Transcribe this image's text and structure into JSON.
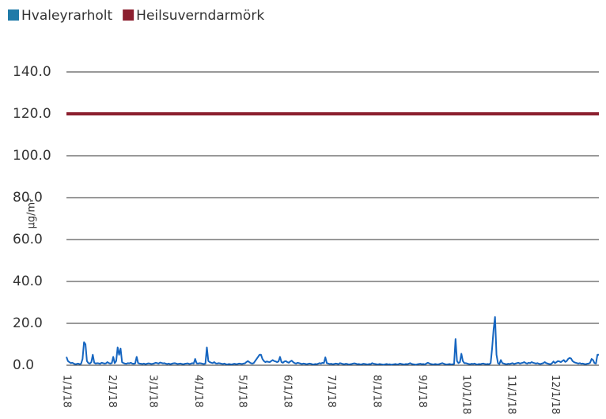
{
  "chart_data": {
    "type": "line",
    "y_label": "µg/m³",
    "categories": [
      "1/1/18",
      null,
      null,
      null,
      null,
      null,
      null,
      null,
      null,
      null,
      null,
      null,
      null,
      null,
      null,
      null,
      null,
      null,
      null,
      null,
      null,
      null,
      null,
      null,
      null,
      null,
      null,
      null,
      null,
      null,
      null,
      "2/1/18",
      null,
      null,
      null,
      null,
      null,
      null,
      null,
      null,
      null,
      null,
      null,
      null,
      null,
      null,
      null,
      null,
      null,
      null,
      null,
      null,
      null,
      null,
      null,
      null,
      null,
      null,
      null,
      "3/1/18",
      null,
      null,
      null,
      null,
      null,
      null,
      null,
      null,
      null,
      null,
      null,
      null,
      null,
      null,
      null,
      null,
      null,
      null,
      null,
      null,
      null,
      null,
      null,
      null,
      null,
      null,
      null,
      null,
      null,
      null,
      "4/1/18",
      null,
      null,
      null,
      null,
      null,
      null,
      null,
      null,
      null,
      null,
      null,
      null,
      null,
      null,
      null,
      null,
      null,
      null,
      null,
      null,
      null,
      null,
      null,
      null,
      null,
      null,
      null,
      null,
      null,
      "5/1/18",
      null,
      null,
      null,
      null,
      null,
      null,
      null,
      null,
      null,
      null,
      null,
      null,
      null,
      null,
      null,
      null,
      null,
      null,
      null,
      null,
      null,
      null,
      null,
      null,
      null,
      null,
      null,
      null,
      null,
      null,
      "6/1/18",
      null,
      null,
      null,
      null,
      null,
      null,
      null,
      null,
      null,
      null,
      null,
      null,
      null,
      null,
      null,
      null,
      null,
      null,
      null,
      null,
      null,
      null,
      null,
      null,
      null,
      null,
      null,
      null,
      null,
      "7/1/18",
      null,
      null,
      null,
      null,
      null,
      null,
      null,
      null,
      null,
      null,
      null,
      null,
      null,
      null,
      null,
      null,
      null,
      null,
      null,
      null,
      null,
      null,
      null,
      null,
      null,
      null,
      null,
      null,
      null,
      null,
      "8/1/18",
      null,
      null,
      null,
      null,
      null,
      null,
      null,
      null,
      null,
      null,
      null,
      null,
      null,
      null,
      null,
      null,
      null,
      null,
      null,
      null,
      null,
      null,
      null,
      null,
      null,
      null,
      null,
      null,
      null,
      null,
      "9/1/18",
      null,
      null,
      null,
      null,
      null,
      null,
      null,
      null,
      null,
      null,
      null,
      null,
      null,
      null,
      null,
      null,
      null,
      null,
      null,
      null,
      null,
      null,
      null,
      null,
      null,
      null,
      null,
      null,
      null,
      "10/1/18",
      null,
      null,
      null,
      null,
      null,
      null,
      null,
      null,
      null,
      null,
      null,
      null,
      null,
      null,
      null,
      null,
      null,
      null,
      null,
      null,
      null,
      null,
      null,
      null,
      null,
      null,
      null,
      null,
      null,
      null,
      "11/1/18",
      null,
      null,
      null,
      null,
      null,
      null,
      null,
      null,
      null,
      null,
      null,
      null,
      null,
      null,
      null,
      null,
      null,
      null,
      null,
      null,
      null,
      null,
      null,
      null,
      null,
      null,
      null,
      null,
      null,
      "12/1/18",
      null,
      null,
      null,
      null,
      null,
      null,
      null,
      null,
      null,
      null,
      null,
      null,
      null,
      null,
      null,
      null,
      null,
      null,
      null,
      null,
      null,
      null,
      null,
      null,
      null,
      null,
      null,
      null,
      null,
      null
    ],
    "series": [
      {
        "name": "Hvaleyrarholt",
        "color": "#1565c0",
        "legend_color": "#1f7aa8",
        "values": [
          4,
          2,
          1.5,
          1,
          1.2,
          0.8,
          0.5,
          0.6,
          0.8,
          0.5,
          0.7,
          3,
          11,
          10,
          2,
          1,
          0.8,
          1.5,
          5,
          1.2,
          0.8,
          1,
          0.9,
          0.7,
          1.2,
          1,
          0.8,
          0.9,
          1.5,
          1,
          0.8,
          1,
          4,
          1,
          2,
          8.5,
          5,
          8,
          1.5,
          1,
          0.8,
          0.7,
          1,
          0.9,
          1.2,
          0.8,
          0.7,
          0.9,
          4,
          1,
          0.8,
          0.7,
          0.6,
          0.8,
          0.5,
          0.7,
          0.9,
          0.8,
          0.6,
          0.7,
          0.9,
          1.2,
          1,
          0.8,
          1.3,
          1.1,
          0.9,
          1,
          0.7,
          0.6,
          0.8,
          0.5,
          0.7,
          0.9,
          1,
          0.8,
          0.6,
          0.7,
          0.8,
          0.6,
          0.5,
          0.7,
          0.8,
          0.9,
          0.6,
          0.7,
          1,
          0.8,
          3,
          0.9,
          0.8,
          1,
          0.9,
          0.7,
          0.6,
          0.8,
          8.5,
          2,
          1.5,
          1.2,
          1,
          1.5,
          0.9,
          0.8,
          1,
          0.9,
          0.7,
          0.6,
          0.8,
          0.5,
          0.4,
          0.6,
          0.5,
          0.4,
          0.6,
          0.7,
          0.5,
          0.6,
          0.8,
          0.7,
          0.6,
          0.8,
          0.9,
          1.5,
          2,
          1.5,
          1,
          0.8,
          1,
          2,
          3,
          4,
          5,
          5,
          3,
          2,
          1.5,
          1.8,
          1.6,
          1.5,
          2,
          2.5,
          2,
          1.8,
          1.5,
          1.8,
          4,
          1.5,
          1.2,
          1.8,
          2,
          1.5,
          1.2,
          1.8,
          2.2,
          1.5,
          1,
          0.8,
          1.2,
          1,
          0.8,
          0.6,
          0.8,
          0.7,
          0.5,
          0.6,
          0.8,
          0.7,
          0.5,
          0.4,
          0.6,
          0.5,
          0.7,
          1,
          0.8,
          1.2,
          1,
          3.8,
          1,
          0.8,
          0.6,
          0.7,
          0.5,
          0.6,
          0.8,
          0.7,
          0.5,
          1,
          0.8,
          0.6,
          0.5,
          0.7,
          0.6,
          0.4,
          0.5,
          0.6,
          0.8,
          0.9,
          0.7,
          0.5,
          0.6,
          0.4,
          0.5,
          0.7,
          0.6,
          0.5,
          0.4,
          0.6,
          0.5,
          1,
          0.7,
          0.6,
          0.5,
          0.4,
          0.6,
          0.5,
          0.4,
          0.3,
          0.5,
          0.6,
          0.4,
          0.5,
          0.3,
          0.4,
          0.5,
          0.6,
          0.4,
          0.5,
          0.8,
          0.6,
          0.5,
          0.4,
          0.6,
          0.5,
          0.7,
          1,
          0.6,
          0.5,
          0.4,
          0.3,
          0.5,
          0.6,
          0.7,
          0.5,
          0.6,
          0.4,
          0.8,
          1.2,
          0.9,
          0.6,
          0.5,
          0.4,
          0.6,
          0.5,
          0.4,
          0.6,
          0.8,
          1,
          0.7,
          0.5,
          0.4,
          0.5,
          0.6,
          0.4,
          0.5,
          0.6,
          12.5,
          2,
          1,
          1.5,
          5.5,
          2,
          1,
          1,
          0.8,
          0.6,
          0.5,
          0.7,
          0.6,
          0.8,
          0.5,
          0.4,
          0.6,
          0.5,
          0.7,
          0.8,
          0.6,
          0.5,
          0.6,
          0.5,
          1,
          8,
          17,
          23,
          5,
          1,
          0.6,
          2.5,
          1,
          0.8,
          0.6,
          0.5,
          0.7,
          0.6,
          0.8,
          1,
          0.6,
          0.8,
          1,
          1.2,
          0.8,
          1,
          1.2,
          1.5,
          1,
          0.8,
          1.2,
          1,
          1.5,
          1.2,
          1,
          0.8,
          1,
          0.7,
          0.6,
          0.8,
          1,
          1.5,
          1,
          0.8,
          0.6,
          0.5,
          1,
          1.8,
          1,
          1.5,
          2,
          1.8,
          1.5,
          2,
          2.5,
          1.6,
          2,
          3,
          3.5,
          3.2,
          2,
          1.5,
          1.2,
          1,
          0.8,
          1,
          0.7,
          0.8,
          0.6,
          0.5,
          0.7,
          0.8,
          1.2,
          3,
          2.5,
          1,
          0.8,
          5,
          5
        ]
      },
      {
        "name": "Heilsuverndarmörk",
        "color": "#8b1e2e",
        "legend_color": "#8b1e2e",
        "values": [
          120,
          120,
          120,
          120,
          120,
          120,
          120,
          120,
          120,
          120,
          120,
          120,
          120,
          120,
          120,
          120,
          120,
          120,
          120,
          120,
          120,
          120,
          120,
          120,
          120,
          120,
          120,
          120,
          120,
          120,
          120,
          120,
          120,
          120,
          120,
          120,
          120,
          120,
          120,
          120,
          120,
          120,
          120,
          120,
          120,
          120,
          120,
          120,
          120,
          120,
          120,
          120,
          120,
          120,
          120,
          120,
          120,
          120,
          120,
          120,
          120,
          120,
          120,
          120,
          120,
          120,
          120,
          120,
          120,
          120,
          120,
          120,
          120,
          120,
          120,
          120,
          120,
          120,
          120,
          120,
          120,
          120,
          120,
          120,
          120,
          120,
          120,
          120,
          120,
          120,
          120,
          120,
          120,
          120,
          120,
          120,
          120,
          120,
          120,
          120,
          120,
          120,
          120,
          120,
          120,
          120,
          120,
          120,
          120,
          120,
          120,
          120,
          120,
          120,
          120,
          120,
          120,
          120,
          120,
          120,
          120,
          120,
          120,
          120,
          120,
          120,
          120,
          120,
          120,
          120,
          120,
          120,
          120,
          120,
          120,
          120,
          120,
          120,
          120,
          120,
          120,
          120,
          120,
          120,
          120,
          120,
          120,
          120,
          120,
          120,
          120,
          120,
          120,
          120,
          120,
          120,
          120,
          120,
          120,
          120,
          120,
          120,
          120,
          120,
          120,
          120,
          120,
          120,
          120,
          120,
          120,
          120,
          120,
          120,
          120,
          120,
          120,
          120,
          120,
          120,
          120,
          120,
          120,
          120,
          120,
          120,
          120,
          120,
          120,
          120,
          120,
          120,
          120,
          120,
          120,
          120,
          120,
          120,
          120,
          120,
          120,
          120,
          120,
          120,
          120,
          120,
          120,
          120,
          120,
          120,
          120,
          120,
          120,
          120,
          120,
          120,
          120,
          120,
          120,
          120,
          120,
          120,
          120,
          120,
          120,
          120,
          120,
          120,
          120,
          120,
          120,
          120,
          120,
          120,
          120,
          120,
          120,
          120,
          120,
          120,
          120,
          120,
          120,
          120,
          120,
          120,
          120,
          120,
          120,
          120,
          120,
          120,
          120,
          120,
          120,
          120,
          120,
          120,
          120,
          120,
          120,
          120,
          120,
          120,
          120,
          120,
          120,
          120,
          120,
          120,
          120,
          120,
          120,
          120,
          120,
          120,
          120,
          120,
          120,
          120,
          120,
          120,
          120,
          120,
          120,
          120,
          120,
          120,
          120,
          120,
          120,
          120,
          120,
          120,
          120,
          120,
          120,
          120,
          120,
          120,
          120,
          120,
          120,
          120,
          120,
          120,
          120,
          120,
          120,
          120,
          120,
          120,
          120,
          120,
          120,
          120,
          120,
          120,
          120,
          120,
          120,
          120,
          120,
          120,
          120,
          120,
          120,
          120,
          120,
          120,
          120,
          120,
          120,
          120,
          120,
          120,
          120,
          120,
          120,
          120,
          120,
          120,
          120,
          120,
          120,
          120,
          120,
          120,
          120,
          120,
          120,
          120,
          120,
          120,
          120,
          120,
          120,
          120,
          120,
          120,
          120,
          120,
          120,
          120,
          120
        ]
      }
    ],
    "ylim": [
      0,
      140
    ],
    "yticks": [
      {
        "value": 0,
        "label": "0.0"
      },
      {
        "value": 20,
        "label": "20.0"
      },
      {
        "value": 40,
        "label": "40.0"
      },
      {
        "value": 60,
        "label": "60.0"
      },
      {
        "value": 80,
        "label": "80.0"
      },
      {
        "value": 100,
        "label": "100.0"
      },
      {
        "value": 120,
        "label": "120.0"
      },
      {
        "value": 140,
        "label": "140.0"
      }
    ],
    "grid": true,
    "legend": "top-left"
  }
}
